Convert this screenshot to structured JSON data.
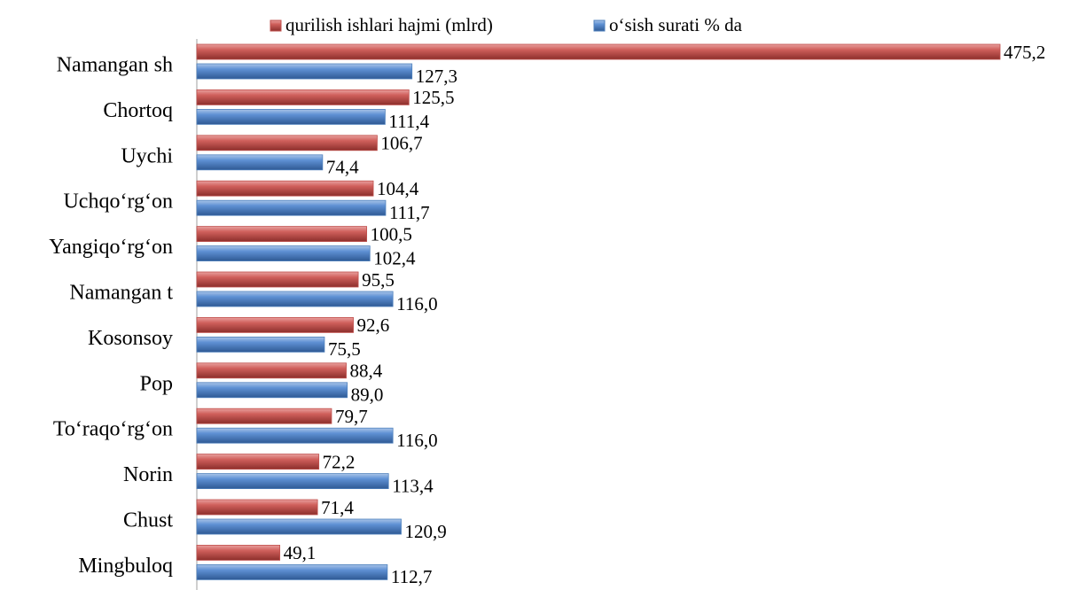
{
  "chart_data": {
    "type": "bar",
    "orientation": "horizontal",
    "categories": [
      "Namangan sh",
      "Chortoq",
      "Uychi",
      "Uchqo‘rg‘on",
      "Yangiqo‘rg‘on",
      "Namangan t",
      "Kosonsoy",
      "Pop",
      "To‘raqo‘rg‘on",
      "Norin",
      "Chust",
      "Mingbuloq"
    ],
    "series": [
      {
        "name": "qurilish ishlari hajmi (mlrd)",
        "color": "#c0504d",
        "values": [
          475.2,
          125.5,
          106.7,
          104.4,
          100.5,
          95.5,
          92.6,
          88.4,
          79.7,
          72.2,
          71.4,
          49.1
        ],
        "value_labels": [
          "475,2",
          "125,5",
          "106,7",
          "104,4",
          "100,5",
          "95,5",
          "92,6",
          "88,4",
          "79,7",
          "72,2",
          "71,4",
          "49,1"
        ]
      },
      {
        "name": "o‘sish surati % da",
        "color": "#4f81bd",
        "values": [
          127.3,
          111.4,
          74.4,
          111.7,
          102.4,
          116.0,
          75.5,
          89.0,
          116.0,
          113.4,
          120.9,
          112.7
        ],
        "value_labels": [
          "127,3",
          "111,4",
          "74,4",
          "111,7",
          "102,4",
          "116,0",
          "75,5",
          "89,0",
          "116,0",
          "113,4",
          "120,9",
          "112,7"
        ]
      }
    ],
    "legend": "top"
  }
}
